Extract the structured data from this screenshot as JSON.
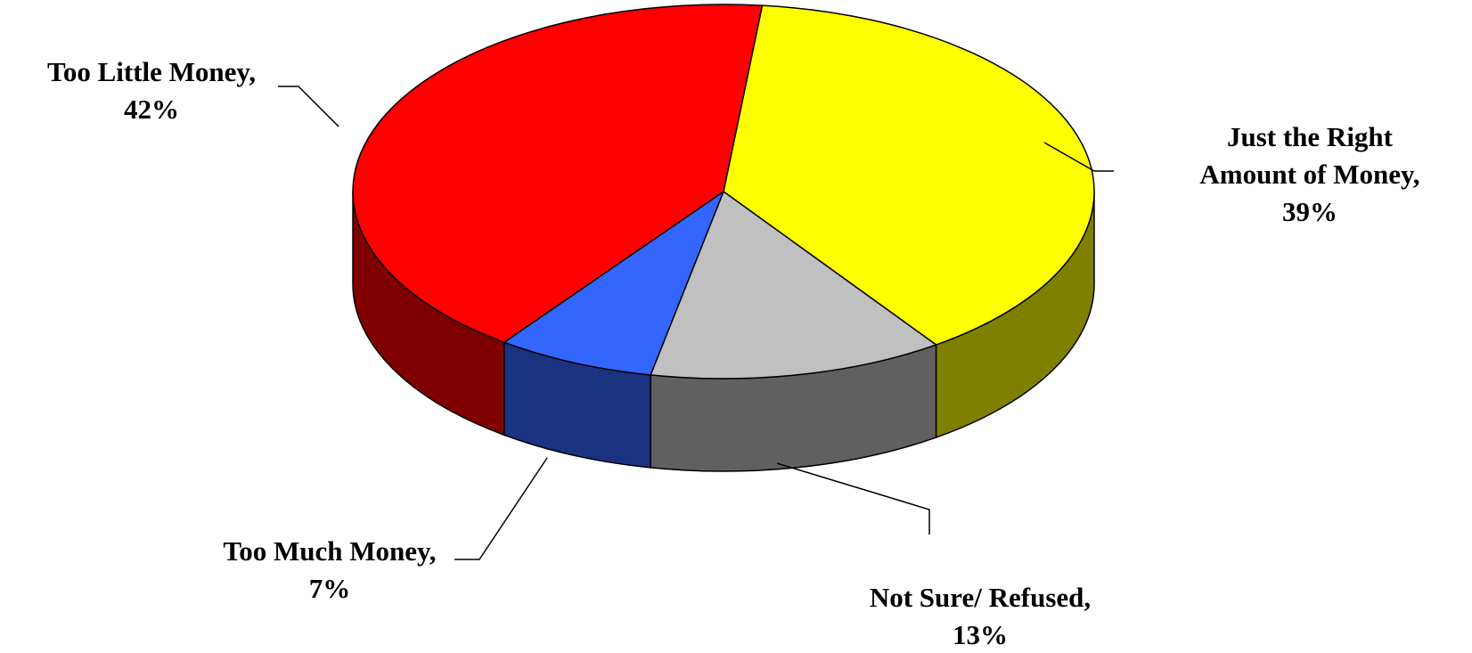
{
  "chart_data": {
    "type": "pie",
    "style": "3d",
    "slices": [
      {
        "label": "Just the Right Amount of Money",
        "value": 39,
        "value_label": "39%",
        "top_color": "#FFFF00",
        "side_color": "#808000"
      },
      {
        "label": "Not Sure/ Refused",
        "value": 13,
        "value_label": "13%",
        "top_color": "#C0C0C0",
        "side_color": "#606060"
      },
      {
        "label": "Too Much Money",
        "value": 7,
        "value_label": "7%",
        "top_color": "#3366FF",
        "side_color": "#1A3380"
      },
      {
        "label": "Too Little Money",
        "value": 42,
        "value_label": "42%",
        "top_color": "#FF0000",
        "side_color": "#800000"
      }
    ],
    "labels": {
      "right_amount": {
        "line1": "Just the Right",
        "line2": "Amount of Money,",
        "line3": "39%"
      },
      "not_sure": {
        "line1": "Not Sure/ Refused,",
        "line2": "13%"
      },
      "too_much": {
        "line1": "Too Much Money,",
        "line2": "7%"
      },
      "too_little": {
        "line1": "Too Little Money,",
        "line2": "42%"
      }
    },
    "legend": "none",
    "title": ""
  }
}
